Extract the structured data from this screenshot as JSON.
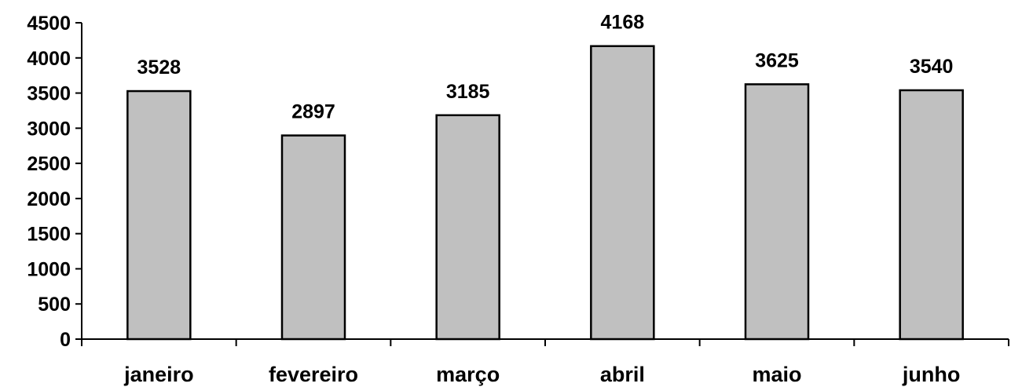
{
  "chart_data": {
    "type": "bar",
    "title": "",
    "xlabel": "",
    "ylabel": "",
    "categories": [
      "janeiro",
      "fevereiro",
      "março",
      "abril",
      "maio",
      "junho"
    ],
    "values": [
      3528,
      2897,
      3185,
      4168,
      3625,
      3540
    ],
    "data_labels": [
      "3528",
      "2897",
      "3185",
      "4168",
      "3625",
      "3540"
    ],
    "ylim": [
      0,
      4500
    ],
    "yticks": [
      0,
      500,
      1000,
      1500,
      2000,
      2500,
      3000,
      3500,
      4000,
      4500
    ],
    "ytick_labels": [
      "0",
      "500",
      "1000",
      "1500",
      "2000",
      "2500",
      "3000",
      "3500",
      "4000",
      "4500"
    ],
    "grid": false,
    "legend": "none",
    "bar_color": "#c0c0c0",
    "bar_edge_color": "#000000"
  }
}
